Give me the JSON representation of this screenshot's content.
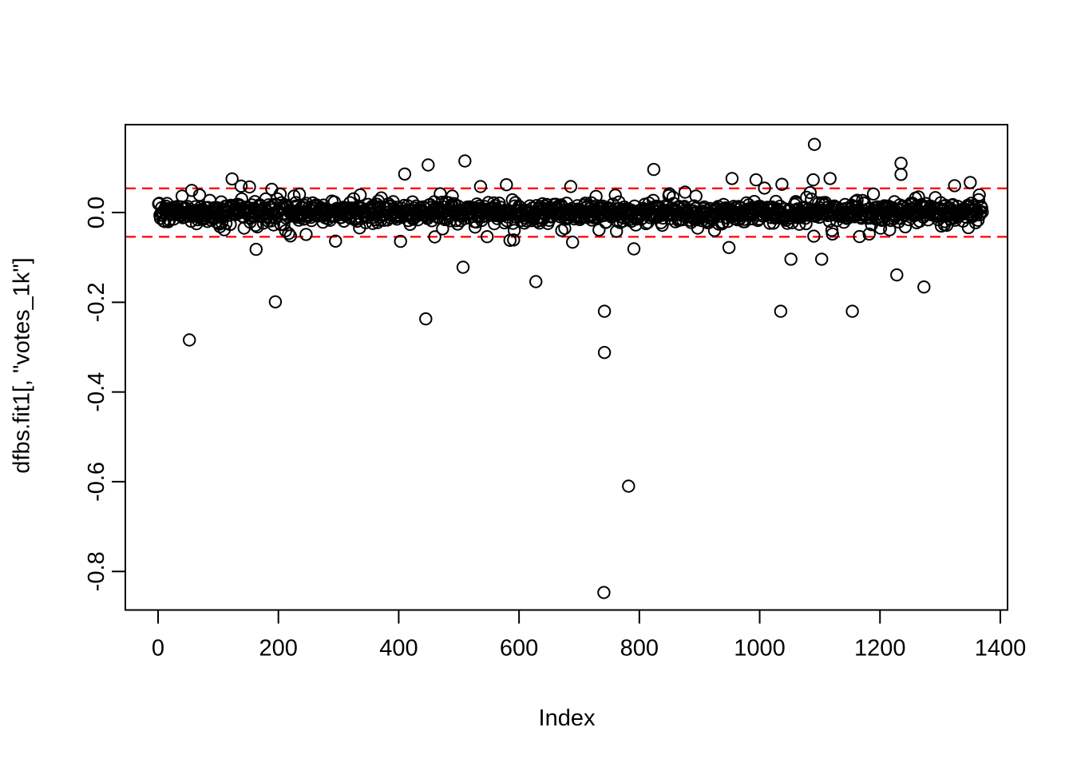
{
  "chart_data": {
    "type": "scatter",
    "title": "",
    "xlabel": "Index",
    "ylabel": "dfbs.fit1[, \"votes_1k\"]",
    "xlim": [
      -54.4,
      1412
    ],
    "ylim": [
      -0.886,
      0.196
    ],
    "x_ticks": [
      0,
      200,
      400,
      600,
      800,
      1000,
      1200,
      1400
    ],
    "y_ticks": [
      {
        "value": 0.0,
        "label": "0.0"
      },
      {
        "value": -0.2,
        "label": "-0.2"
      },
      {
        "value": -0.4,
        "label": "-0.4"
      },
      {
        "value": -0.6,
        "label": "-0.6"
      },
      {
        "value": -0.8,
        "label": "-0.8"
      }
    ],
    "grid": false,
    "legend": false,
    "point_marker": "open-circle",
    "point_color": "#000000",
    "frame_color": "#000000",
    "background_color": "#ffffff",
    "reference_lines": {
      "values": [
        0.054,
        -0.054
      ],
      "color": "#ff0000",
      "style": "dashed"
    },
    "n_points": 1370,
    "band": {
      "mean": 0.0,
      "sd_core": 0.011,
      "sd_tail": 0.028,
      "tail_fraction": 0.15,
      "clamp": [
        -0.068,
        0.062
      ],
      "seed": 1234
    },
    "outliers": [
      [
        52,
        -0.284
      ],
      [
        123,
        0.075
      ],
      [
        138,
        0.059
      ],
      [
        163,
        -0.082
      ],
      [
        189,
        0.052
      ],
      [
        195,
        -0.199
      ],
      [
        410,
        0.086
      ],
      [
        445,
        -0.237
      ],
      [
        449,
        0.106
      ],
      [
        507,
        -0.122
      ],
      [
        510,
        0.115
      ],
      [
        536,
        0.058
      ],
      [
        591,
        -0.061
      ],
      [
        628,
        -0.154
      ],
      [
        686,
        0.058
      ],
      [
        689,
        -0.066
      ],
      [
        741,
        -0.847
      ],
      [
        742,
        -0.22
      ],
      [
        742,
        -0.312
      ],
      [
        782,
        -0.61
      ],
      [
        791,
        -0.081
      ],
      [
        824,
        0.096
      ],
      [
        949,
        -0.078
      ],
      [
        954,
        0.076
      ],
      [
        994,
        0.073
      ],
      [
        1035,
        -0.22
      ],
      [
        1037,
        0.063
      ],
      [
        1052,
        -0.104
      ],
      [
        1089,
        0.073
      ],
      [
        1091,
        0.152
      ],
      [
        1103,
        -0.104
      ],
      [
        1117,
        0.076
      ],
      [
        1154,
        -0.22
      ],
      [
        1228,
        -0.139
      ],
      [
        1235,
        0.11
      ],
      [
        1235,
        0.085
      ],
      [
        1273,
        -0.166
      ],
      [
        1350,
        0.067
      ]
    ]
  }
}
